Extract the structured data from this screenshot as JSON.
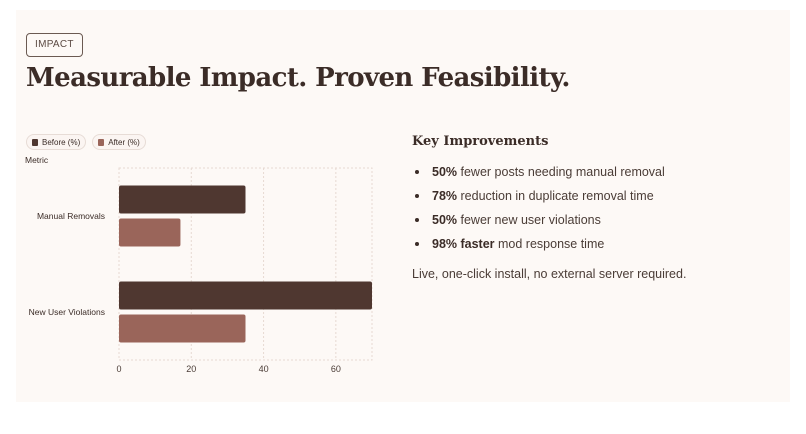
{
  "tag": "IMPACT",
  "title": "Measurable Impact. Proven Feasibility.",
  "colors": {
    "before": "#4f3730",
    "after": "#9a655a",
    "grid": "#e6d9d2",
    "title": "#3b2c27"
  },
  "chart_data": {
    "type": "bar",
    "orientation": "horizontal",
    "ylabel": "Metric",
    "categories": [
      "Manual Removals",
      "New User Violations"
    ],
    "series": [
      {
        "name": "Before (%)",
        "values": [
          35,
          70
        ],
        "color": "#4f3730"
      },
      {
        "name": "After (%)",
        "values": [
          17,
          35
        ],
        "color": "#9a655a"
      }
    ],
    "xlim": [
      0,
      70
    ],
    "xticks": [
      0,
      20,
      40,
      60
    ],
    "grid": true,
    "legend_position": "top-left"
  },
  "improvements": {
    "title": "Key Improvements",
    "items": [
      {
        "bold": "50%",
        "text": " fewer posts needing manual removal"
      },
      {
        "bold": "78%",
        "text": " reduction in duplicate removal time"
      },
      {
        "bold": "50%",
        "text": " fewer new user violations"
      },
      {
        "bold": "98% faster",
        "text": " mod response time"
      }
    ],
    "footnote": "Live, one-click install, no external server required."
  }
}
